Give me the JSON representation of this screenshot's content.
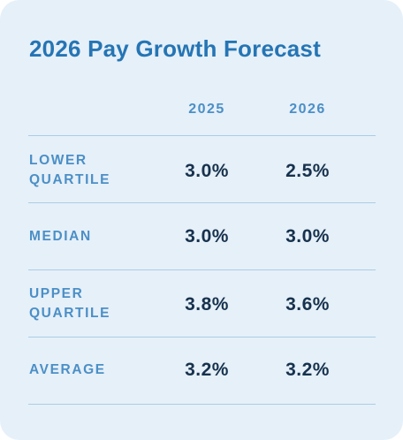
{
  "title": "2026 Pay Growth Forecast",
  "columns": [
    "2025",
    "2026"
  ],
  "rows": [
    {
      "label_lines": [
        "LOWER",
        "QUARTILE"
      ],
      "values": [
        "3.0%",
        "2.5%"
      ]
    },
    {
      "label_lines": [
        "MEDIAN"
      ],
      "values": [
        "3.0%",
        "3.0%"
      ]
    },
    {
      "label_lines": [
        "UPPER",
        "QUARTILE"
      ],
      "values": [
        "3.8%",
        "3.6%"
      ]
    },
    {
      "label_lines": [
        "AVERAGE"
      ],
      "values": [
        "3.2%",
        "3.2%"
      ]
    }
  ],
  "colors": {
    "card_background": "#e6f0f9",
    "title": "#2575b4",
    "labels": "#4b8fc6",
    "values": "#17324d",
    "rules": "#a9cde6"
  }
}
